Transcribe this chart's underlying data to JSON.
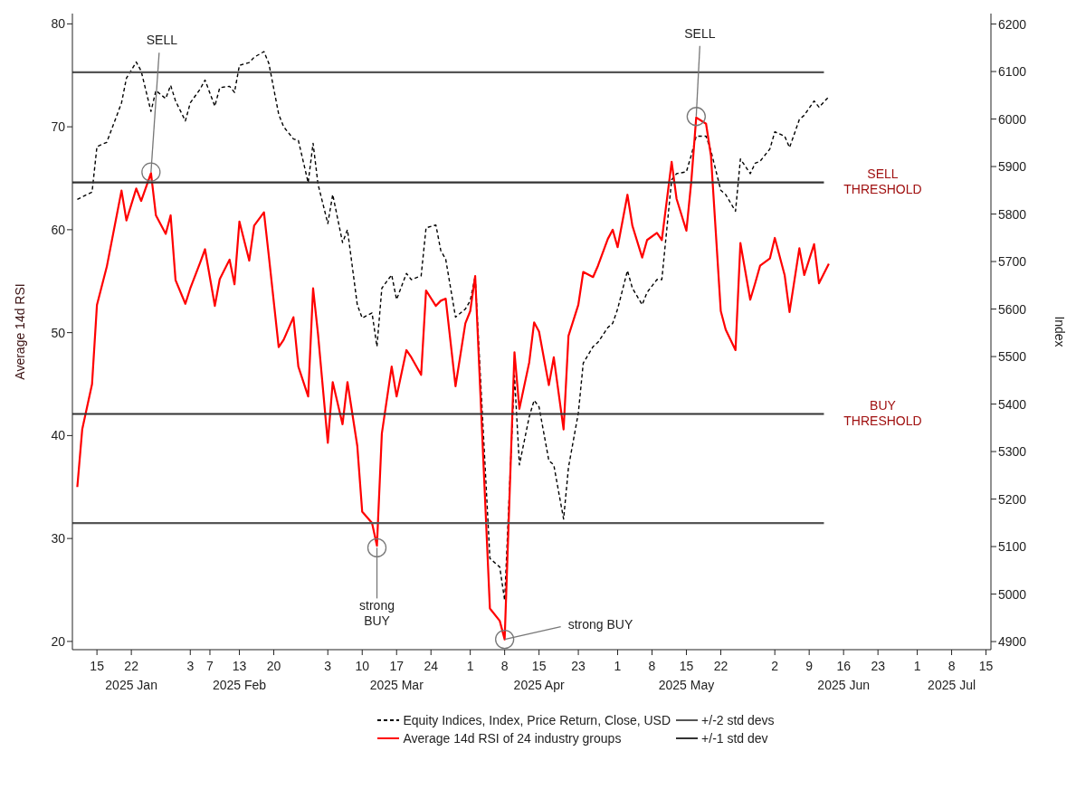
{
  "chart_data": {
    "type": "line",
    "xlabel": null,
    "ylabel": "Average 14d RSI",
    "y2label": "Index",
    "legend": "bottom",
    "xlim": [
      "2025-01-10",
      "2025-07-16"
    ],
    "xticks": [
      {
        "value": "2025-01-15",
        "label": "15"
      },
      {
        "value": "2025-01-22",
        "label": "22\n2025 Jan"
      },
      {
        "value": "2025-02-03",
        "label": "3"
      },
      {
        "value": "2025-02-07",
        "label": "7"
      },
      {
        "value": "2025-02-13",
        "label": "13\n2025 Feb"
      },
      {
        "value": "2025-02-20",
        "label": "20"
      },
      {
        "value": "2025-03-03",
        "label": "3"
      },
      {
        "value": "2025-03-10",
        "label": "10"
      },
      {
        "value": "2025-03-17",
        "label": "17\n2025 Mar"
      },
      {
        "value": "2025-03-24",
        "label": "24"
      },
      {
        "value": "2025-04-01",
        "label": "1"
      },
      {
        "value": "2025-04-08",
        "label": "8"
      },
      {
        "value": "2025-04-15",
        "label": "15\n2025 Apr"
      },
      {
        "value": "2025-04-23",
        "label": "23"
      },
      {
        "value": "2025-05-01",
        "label": "1"
      },
      {
        "value": "2025-05-08",
        "label": "8"
      },
      {
        "value": "2025-05-15",
        "label": "15\n2025 May"
      },
      {
        "value": "2025-05-22",
        "label": "22"
      },
      {
        "value": "2025-06-02",
        "label": "2"
      },
      {
        "value": "2025-06-09",
        "label": "9"
      },
      {
        "value": "2025-06-16",
        "label": "16\n2025 Jun"
      },
      {
        "value": "2025-06-23",
        "label": "23"
      },
      {
        "value": "2025-07-01",
        "label": "1"
      },
      {
        "value": "2025-07-08",
        "label": "8\n2025 Jul"
      },
      {
        "value": "2025-07-15",
        "label": "15"
      }
    ],
    "ylim": [
      19.2,
      81
    ],
    "yticks": [
      20,
      30,
      40,
      50,
      60,
      70,
      80
    ],
    "y2lim": [
      4883,
      6222
    ],
    "y2ticks": [
      4900,
      5000,
      5100,
      5200,
      5300,
      5400,
      5500,
      5600,
      5700,
      5800,
      5900,
      6000,
      6100,
      6200
    ],
    "series": [
      {
        "name": "Equity Indices, Index, Price Return, Close, USD",
        "axis": "y2",
        "color": "#000000",
        "line_style": "dashed",
        "x": [
          "2025-01-11",
          "2025-01-14",
          "2025-01-15",
          "2025-01-17",
          "2025-01-20",
          "2025-01-21",
          "2025-01-23",
          "2025-01-24",
          "2025-01-26",
          "2025-01-27",
          "2025-01-29",
          "2025-01-30",
          "2025-01-31",
          "2025-02-02",
          "2025-02-03",
          "2025-02-05",
          "2025-02-06",
          "2025-02-08",
          "2025-02-09",
          "2025-02-11",
          "2025-02-12",
          "2025-02-13",
          "2025-02-15",
          "2025-02-16",
          "2025-02-18",
          "2025-02-19",
          "2025-02-21",
          "2025-02-22",
          "2025-02-24",
          "2025-02-25",
          "2025-02-27",
          "2025-02-28",
          "2025-03-01",
          "2025-03-03",
          "2025-03-04",
          "2025-03-06",
          "2025-03-07",
          "2025-03-09",
          "2025-03-10",
          "2025-03-12",
          "2025-03-13",
          "2025-03-14",
          "2025-03-16",
          "2025-03-17",
          "2025-03-19",
          "2025-03-20",
          "2025-03-22",
          "2025-03-23",
          "2025-03-25",
          "2025-03-26",
          "2025-03-27",
          "2025-03-29",
          "2025-03-31",
          "2025-04-01",
          "2025-04-02",
          "2025-04-05",
          "2025-04-07",
          "2025-04-08",
          "2025-04-10",
          "2025-04-11",
          "2025-04-13",
          "2025-04-14",
          "2025-04-15",
          "2025-04-17",
          "2025-04-18",
          "2025-04-20",
          "2025-04-21",
          "2025-04-23",
          "2025-04-24",
          "2025-04-26",
          "2025-04-27",
          "2025-04-29",
          "2025-04-30",
          "2025-05-01",
          "2025-05-03",
          "2025-05-04",
          "2025-05-06",
          "2025-05-07",
          "2025-05-09",
          "2025-05-10",
          "2025-05-12",
          "2025-05-13",
          "2025-05-15",
          "2025-05-16",
          "2025-05-17",
          "2025-05-19",
          "2025-05-20",
          "2025-05-22",
          "2025-05-23",
          "2025-05-25",
          "2025-05-26",
          "2025-05-28",
          "2025-05-29",
          "2025-05-30",
          "2025-06-01",
          "2025-06-02",
          "2025-06-04",
          "2025-06-05",
          "2025-06-07",
          "2025-06-08",
          "2025-06-10",
          "2025-06-11",
          "2025-06-13"
        ],
        "values": [
          5831,
          5846,
          5942,
          5951,
          6034,
          6086,
          6120,
          6101,
          6016,
          6060,
          6043,
          6071,
          6038,
          5996,
          6034,
          6063,
          6082,
          6027,
          6066,
          6069,
          6056,
          6113,
          6119,
          6130,
          6142,
          6117,
          6010,
          5984,
          5958,
          5955,
          5866,
          5949,
          5863,
          5780,
          5841,
          5740,
          5767,
          5609,
          5581,
          5592,
          5521,
          5644,
          5672,
          5620,
          5675,
          5662,
          5670,
          5771,
          5777,
          5723,
          5705,
          5583,
          5600,
          5618,
          5669,
          5075,
          5057,
          4987,
          5460,
          5272,
          5373,
          5408,
          5394,
          5281,
          5272,
          5158,
          5267,
          5381,
          5486,
          5521,
          5530,
          5561,
          5570,
          5600,
          5681,
          5644,
          5609,
          5635,
          5662,
          5662,
          5872,
          5885,
          5889,
          5924,
          5964,
          5964,
          5933,
          5850,
          5841,
          5806,
          5916,
          5885,
          5907,
          5911,
          5937,
          5973,
          5964,
          5940,
          5999,
          6008,
          6038,
          6025,
          6047
        ]
      },
      {
        "name": "Average 14d RSI of 24 industry groups",
        "color": "#ff0000",
        "line_style": "solid",
        "x": [
          "2025-01-11",
          "2025-01-12",
          "2025-01-14",
          "2025-01-15",
          "2025-01-17",
          "2025-01-20",
          "2025-01-21",
          "2025-01-23",
          "2025-01-24",
          "2025-01-26",
          "2025-01-27",
          "2025-01-29",
          "2025-01-30",
          "2025-01-31",
          "2025-02-02",
          "2025-02-03",
          "2025-02-05",
          "2025-02-06",
          "2025-02-08",
          "2025-02-09",
          "2025-02-11",
          "2025-02-12",
          "2025-02-13",
          "2025-02-15",
          "2025-02-16",
          "2025-02-18",
          "2025-02-19",
          "2025-02-21",
          "2025-02-22",
          "2025-02-24",
          "2025-02-25",
          "2025-02-27",
          "2025-02-28",
          "2025-03-01",
          "2025-03-03",
          "2025-03-04",
          "2025-03-06",
          "2025-03-07",
          "2025-03-09",
          "2025-03-10",
          "2025-03-12",
          "2025-03-13",
          "2025-03-14",
          "2025-03-16",
          "2025-03-17",
          "2025-03-19",
          "2025-03-20",
          "2025-03-22",
          "2025-03-23",
          "2025-03-25",
          "2025-03-26",
          "2025-03-27",
          "2025-03-29",
          "2025-03-31",
          "2025-04-01",
          "2025-04-02",
          "2025-04-05",
          "2025-04-07",
          "2025-04-08",
          "2025-04-10",
          "2025-04-11",
          "2025-04-13",
          "2025-04-14",
          "2025-04-15",
          "2025-04-17",
          "2025-04-18",
          "2025-04-20",
          "2025-04-21",
          "2025-04-23",
          "2025-04-24",
          "2025-04-26",
          "2025-04-27",
          "2025-04-29",
          "2025-04-30",
          "2025-05-01",
          "2025-05-03",
          "2025-05-04",
          "2025-05-06",
          "2025-05-07",
          "2025-05-09",
          "2025-05-10",
          "2025-05-12",
          "2025-05-13",
          "2025-05-15",
          "2025-05-16",
          "2025-05-17",
          "2025-05-19",
          "2025-05-20",
          "2025-05-22",
          "2025-05-23",
          "2025-05-25",
          "2025-05-26",
          "2025-05-28",
          "2025-05-29",
          "2025-05-30",
          "2025-06-01",
          "2025-06-02",
          "2025-06-04",
          "2025-06-05",
          "2025-06-07",
          "2025-06-08",
          "2025-06-10",
          "2025-06-11",
          "2025-06-13"
        ],
        "values": [
          35.0,
          40.6,
          45.0,
          52.7,
          56.4,
          63.8,
          60.9,
          64.0,
          62.8,
          65.5,
          61.4,
          59.6,
          61.4,
          55.1,
          52.8,
          54.3,
          56.8,
          58.1,
          52.6,
          55.2,
          57.1,
          54.7,
          60.8,
          57.0,
          60.4,
          61.7,
          57.4,
          48.6,
          49.3,
          51.5,
          46.7,
          43.8,
          54.3,
          49.9,
          39.3,
          45.2,
          41.1,
          45.2,
          39.0,
          32.6,
          31.5,
          29.3,
          40.2,
          46.7,
          43.8,
          48.3,
          47.6,
          45.9,
          54.1,
          52.6,
          53.1,
          53.3,
          44.8,
          50.9,
          52.1,
          55.5,
          23.2,
          22.0,
          20.2,
          48.1,
          42.6,
          47.1,
          51.0,
          50.1,
          44.9,
          47.6,
          40.6,
          49.7,
          52.7,
          55.9,
          55.4,
          56.5,
          59.1,
          60.0,
          58.3,
          63.4,
          60.4,
          57.3,
          59.0,
          59.7,
          59.0,
          66.6,
          63.0,
          59.9,
          64.7,
          70.9,
          70.3,
          67.2,
          52.1,
          50.3,
          48.3,
          58.7,
          53.2,
          54.8,
          56.5,
          57.2,
          59.2,
          55.6,
          52.0,
          58.2,
          55.6,
          58.6,
          54.8,
          56.7
        ]
      },
      {
        "name": "+/-2 std devs",
        "color": "#555555",
        "line_style": "solid",
        "x": [
          "2025-01-10",
          "2025-06-12"
        ],
        "values": [
          75.3,
          75.3
        ]
      },
      {
        "name": "+/-1 std dev",
        "color": "#333333",
        "line_style": "solid",
        "x": [
          "2025-01-10",
          "2025-06-12"
        ],
        "values": [
          64.6,
          64.6
        ]
      },
      {
        "color": "#555555",
        "line_style": "solid",
        "x": [
          "2025-01-10",
          "2025-06-12"
        ],
        "values": [
          31.5,
          31.5
        ]
      },
      {
        "color": "#333333",
        "line_style": "solid",
        "x": [
          "2025-01-10",
          "2025-06-12"
        ],
        "values": [
          42.1,
          42.1
        ]
      }
    ],
    "annotations": [
      {
        "text": "SELL",
        "x": "2025-01-26",
        "y": 65.6
      },
      {
        "text": "SELL",
        "x": "2025-05-17",
        "y": 71.0
      },
      {
        "text": "strong\nBUY",
        "x": "2025-03-13",
        "y": 29.1
      },
      {
        "text": "strong BUY",
        "x": "2025-04-08",
        "y": 20.2
      },
      {
        "text": "SELL\nTHRESHOLD",
        "x": "2025-06-12",
        "y": 64.6
      },
      {
        "text": "BUY\nTHRESHOLD",
        "x": "2025-06-12",
        "y": 42.1
      }
    ]
  }
}
